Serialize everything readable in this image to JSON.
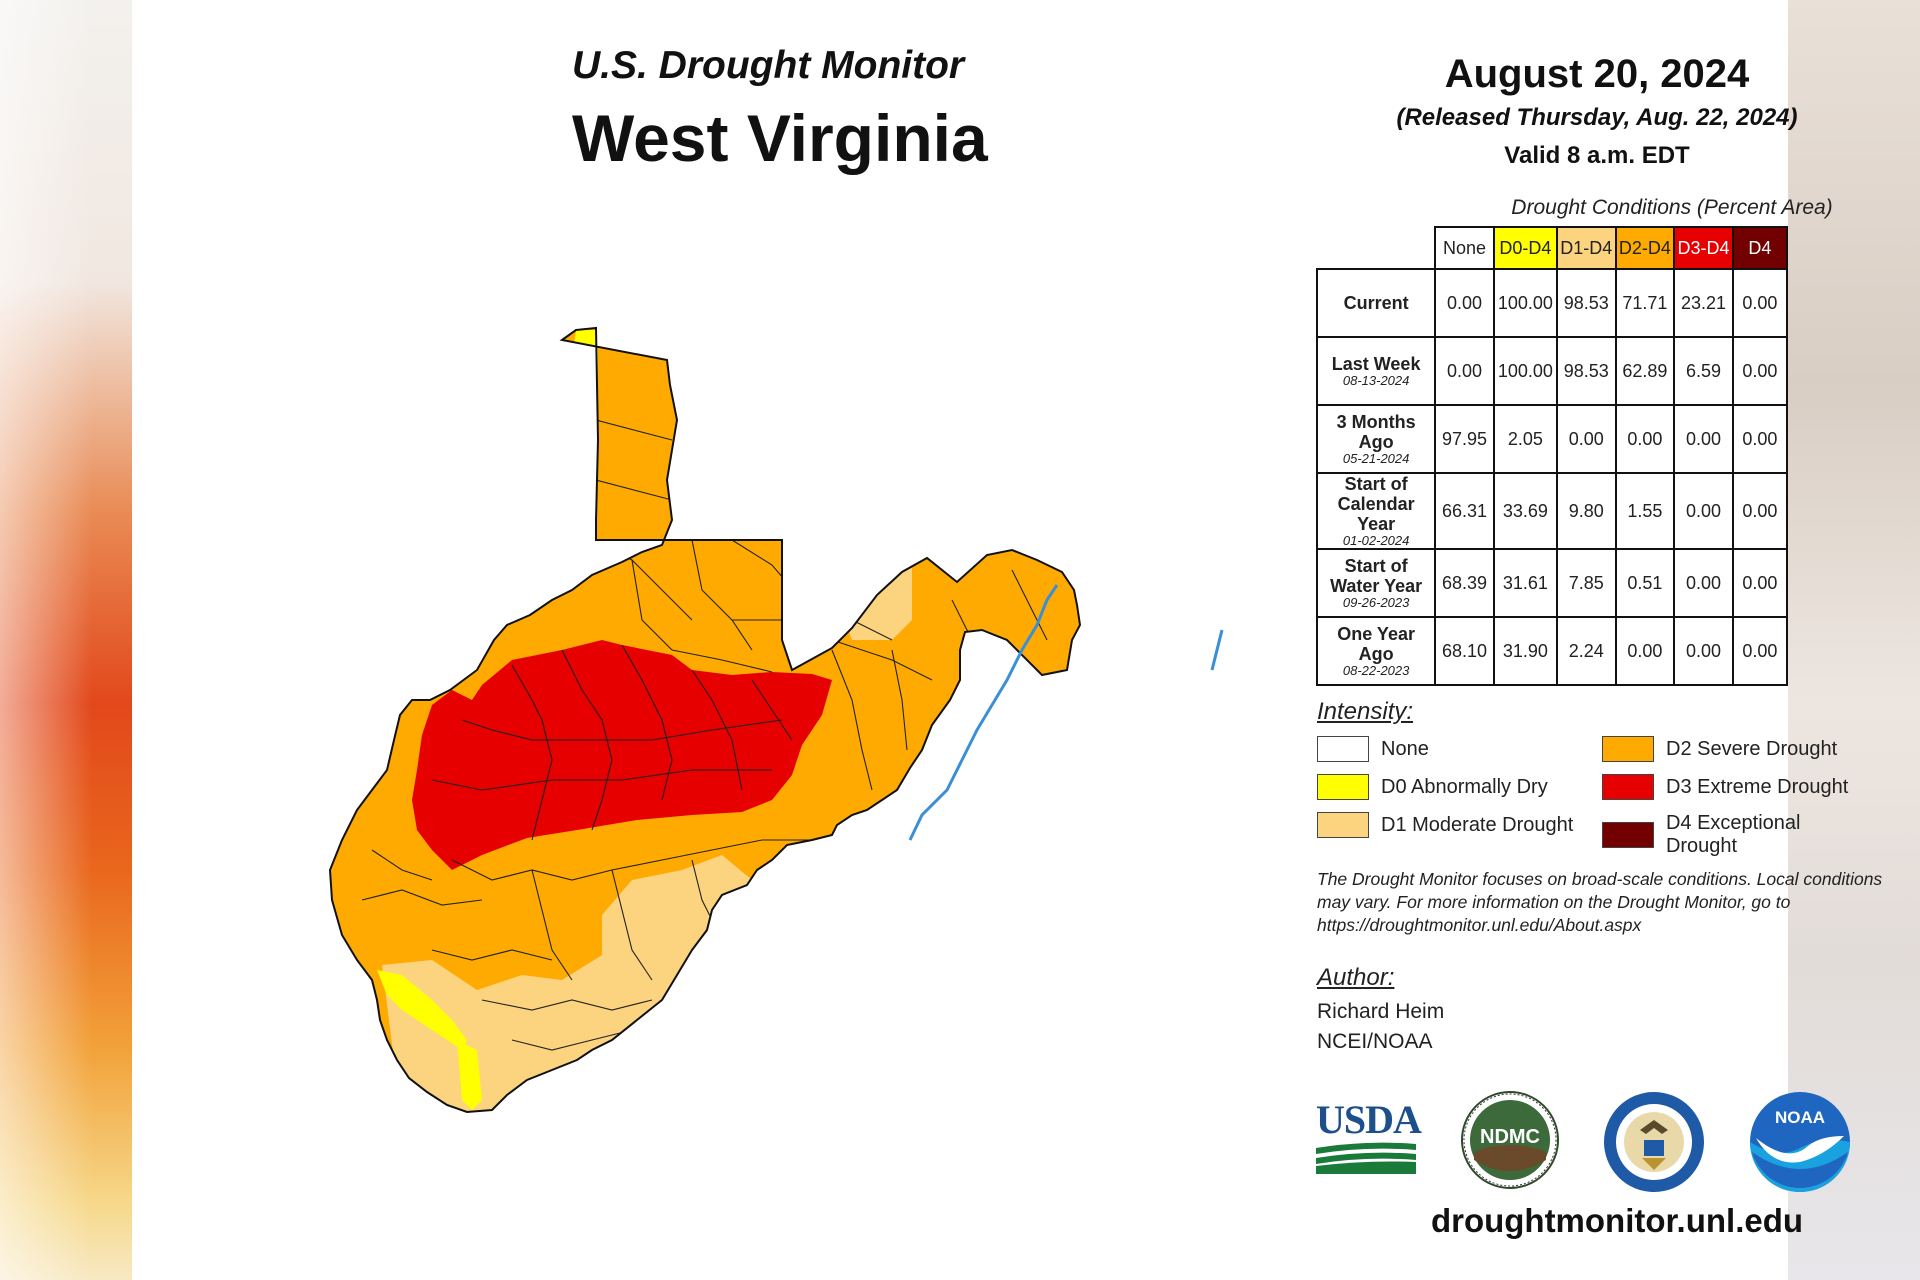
{
  "header": {
    "kicker": "U.S. Drought Monitor",
    "state": "West Virginia",
    "date": "August 20, 2024",
    "released": "(Released Thursday, Aug. 22, 2024)",
    "valid": "Valid 8 a.m. EDT"
  },
  "table": {
    "caption": "Drought Conditions (Percent Area)",
    "columns": [
      "None",
      "D0-D4",
      "D1-D4",
      "D2-D4",
      "D3-D4",
      "D4"
    ],
    "column_colors": [
      "#ffffff",
      "#ffff00",
      "#fcd37f",
      "#ffaa00",
      "#e60000",
      "#730000"
    ],
    "rows": [
      {
        "label": "Current",
        "date": "",
        "values": [
          "0.00",
          "100.00",
          "98.53",
          "71.71",
          "23.21",
          "0.00"
        ]
      },
      {
        "label": "Last Week",
        "date": "08-13-2024",
        "values": [
          "0.00",
          "100.00",
          "98.53",
          "62.89",
          "6.59",
          "0.00"
        ]
      },
      {
        "label": "3 Months Ago",
        "date": "05-21-2024",
        "values": [
          "97.95",
          "2.05",
          "0.00",
          "0.00",
          "0.00",
          "0.00"
        ]
      },
      {
        "label": "Start of Calendar Year",
        "date": "01-02-2024",
        "values": [
          "66.31",
          "33.69",
          "9.80",
          "1.55",
          "0.00",
          "0.00"
        ]
      },
      {
        "label": "Start of Water Year",
        "date": "09-26-2023",
        "values": [
          "68.39",
          "31.61",
          "7.85",
          "0.51",
          "0.00",
          "0.00"
        ]
      },
      {
        "label": "One Year Ago",
        "date": "08-22-2023",
        "values": [
          "68.10",
          "31.90",
          "2.24",
          "0.00",
          "0.00",
          "0.00"
        ]
      }
    ]
  },
  "legend": {
    "heading": "Intensity:",
    "items": [
      {
        "label": "None",
        "color": "#ffffff"
      },
      {
        "label": "D0 Abnormally Dry",
        "color": "#ffff00"
      },
      {
        "label": "D1 Moderate Drought",
        "color": "#fcd37f"
      },
      {
        "label": "D2 Severe Drought",
        "color": "#ffaa00"
      },
      {
        "label": "D3 Extreme Drought",
        "color": "#e60000"
      },
      {
        "label": "D4 Exceptional Drought",
        "color": "#730000"
      }
    ]
  },
  "note": "The Drought Monitor focuses on broad-scale conditions. Local conditions may vary. For more information on the Drought Monitor, go to https://droughtmonitor.unl.edu/About.aspx",
  "author": {
    "heading": "Author:",
    "name": "Richard Heim",
    "org": "NCEI/NOAA"
  },
  "logos": {
    "usda": "USDA",
    "ndmc": "NDMC",
    "noaa": "NOAA"
  },
  "website": "droughtmonitor.unl.edu",
  "colors": {
    "d0": "#ffff00",
    "d1": "#fcd37f",
    "d2": "#ffaa00",
    "d3": "#e60000",
    "d4": "#730000",
    "river": "#3a8fd6"
  }
}
